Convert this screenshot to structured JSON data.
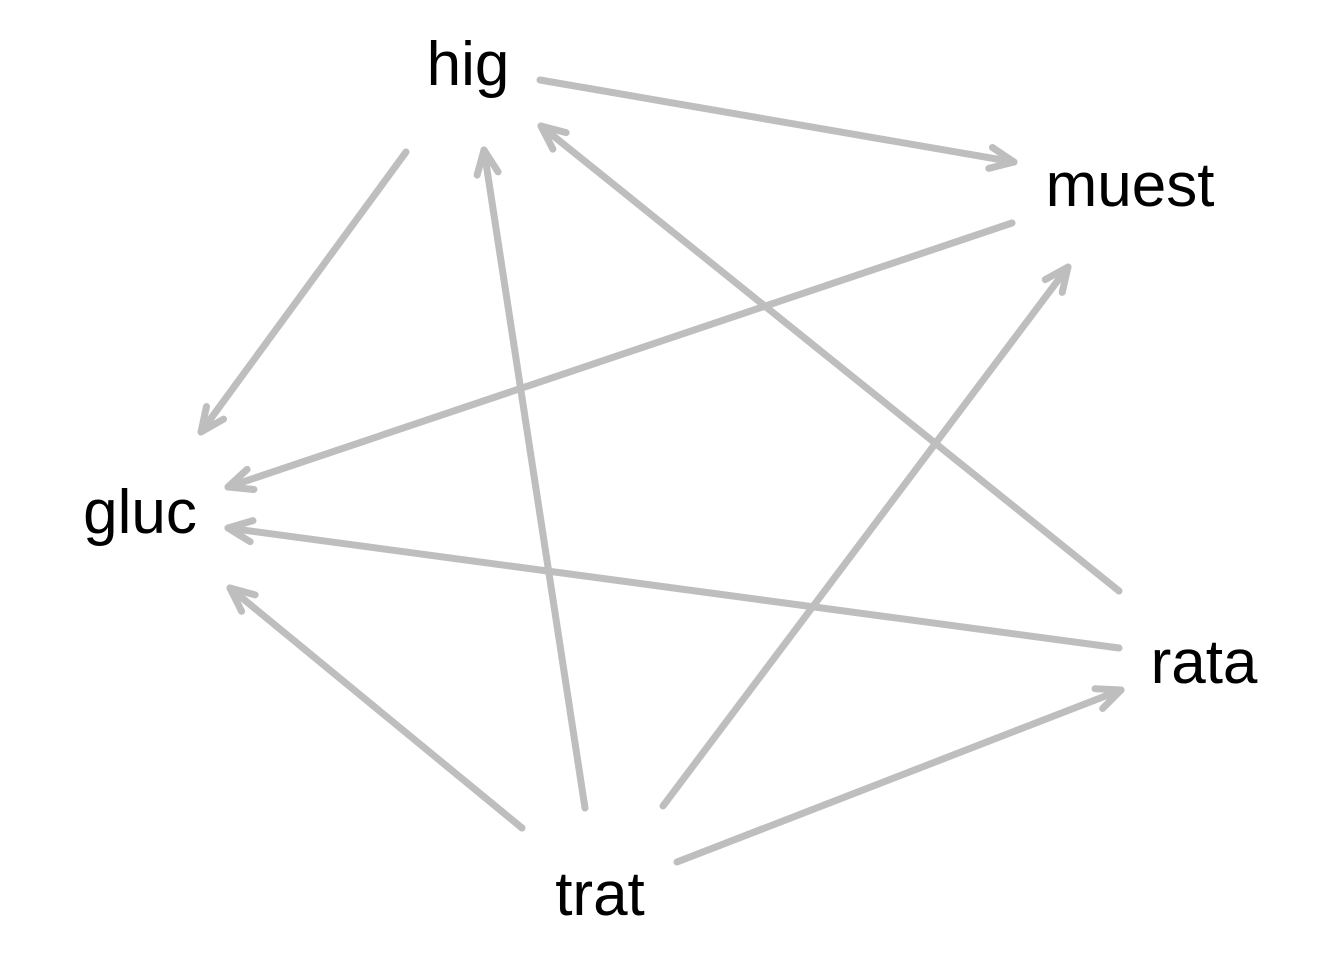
{
  "diagram": {
    "type": "directed-graph",
    "edge_color": "#bebebe",
    "label_color": "#000000",
    "nodes": [
      {
        "id": "hig",
        "label": "hig"
      },
      {
        "id": "muest",
        "label": "muest"
      },
      {
        "id": "gluc",
        "label": "gluc"
      },
      {
        "id": "rata",
        "label": "rata"
      },
      {
        "id": "trat",
        "label": "trat"
      }
    ],
    "edges": [
      {
        "from": "hig",
        "to": "muest"
      },
      {
        "from": "hig",
        "to": "gluc"
      },
      {
        "from": "muest",
        "to": "gluc"
      },
      {
        "from": "trat",
        "to": "hig"
      },
      {
        "from": "rata",
        "to": "hig"
      },
      {
        "from": "trat",
        "to": "muest"
      },
      {
        "from": "rata",
        "to": "gluc"
      },
      {
        "from": "trat",
        "to": "gluc"
      },
      {
        "from": "trat",
        "to": "rata"
      }
    ]
  }
}
